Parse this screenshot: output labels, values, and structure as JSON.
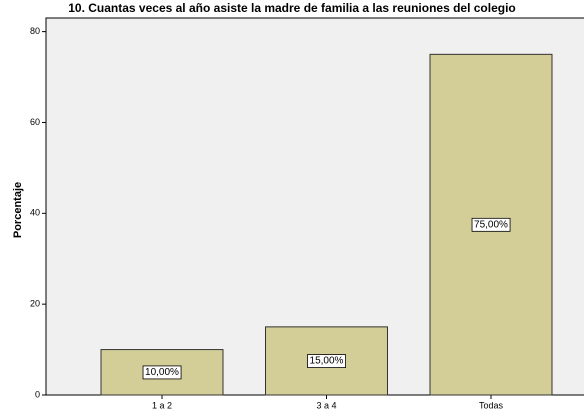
{
  "chart_data": {
    "type": "bar",
    "title": "10. Cuantas veces al año asiste la madre de familia a las reuniones del colegio",
    "y_label": "Porcentaje",
    "categories": [
      "1 a 2",
      "3 a 4",
      "Todas"
    ],
    "values": [
      10,
      15,
      75
    ],
    "value_labels": [
      "10,00%",
      "15,00%",
      "75,00%"
    ],
    "color": "#d3ce97",
    "ylim": [
      0,
      83
    ],
    "yticks": [
      0,
      20,
      40,
      60,
      80
    ],
    "grid": false
  }
}
